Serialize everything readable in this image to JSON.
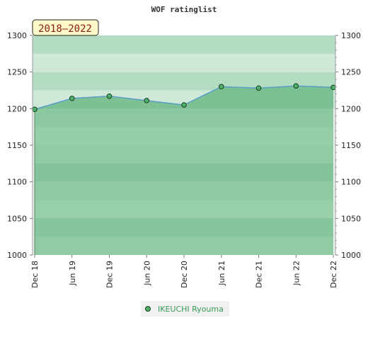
{
  "chart_data": {
    "type": "area",
    "title": "WOF ratinglist",
    "badge": "2018–2022",
    "categories": [
      "Dec 18",
      "Jun 19",
      "Dec 19",
      "Jun 20",
      "Dec 20",
      "Jun 21",
      "Dec 21",
      "Jun 22",
      "Dec 22"
    ],
    "series": [
      {
        "name": "IKEUCHI Ryouma",
        "values": [
          1199,
          1214,
          1217,
          1211,
          1205,
          1230,
          1228,
          1231,
          1229
        ]
      }
    ],
    "ylim": [
      1000,
      1300
    ],
    "yticks": [
      1000,
      1050,
      1100,
      1150,
      1200,
      1250,
      1300
    ],
    "y_axes": "left-and-right",
    "legend_position": "bottom-left",
    "grid": false,
    "colors": {
      "line": "#5a9ec8",
      "marker_fill": "#4caf6a",
      "marker_stroke": "#1f3f1f",
      "area_fill": "#5cb87a",
      "band_light": "#b3dcc2",
      "band_mid": "#cfe8d8",
      "band_pale": "#e8f3ec",
      "band_dark_a": "#79c394",
      "band_dark_b": "#8acb9f",
      "badge_bg": "#fff8c8"
    }
  }
}
